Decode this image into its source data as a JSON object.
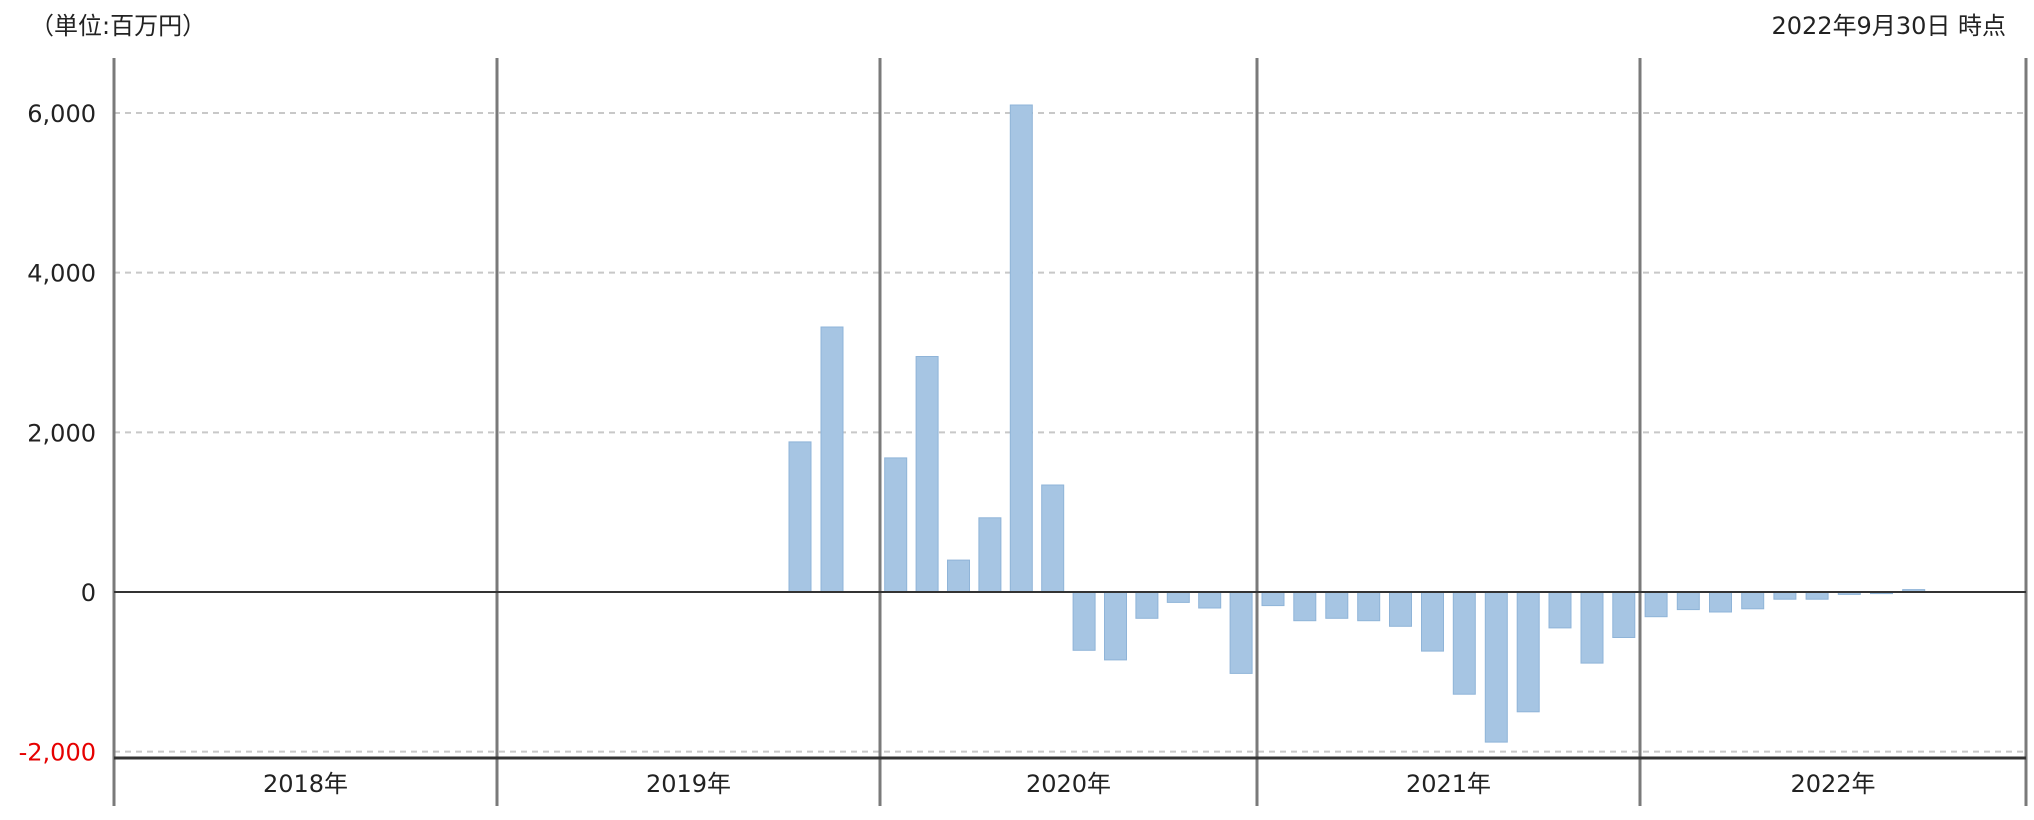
{
  "header": {
    "unit_label": "（単位:百万円）",
    "as_of_label": "2022年9月30日 時点"
  },
  "colors": {
    "bar": "#a6c5e3",
    "grid": "#c8c8c8",
    "axis": "#333333",
    "separator": "#7a7a7a",
    "negative_tick": "#e60000",
    "text": "#222222"
  },
  "chart_data": {
    "type": "bar",
    "unit": "百万円",
    "ylim": [
      -2000,
      6300
    ],
    "yticks": [
      {
        "value": 6000,
        "label": "6,000"
      },
      {
        "value": 4000,
        "label": "4,000"
      },
      {
        "value": 2000,
        "label": "2,000"
      },
      {
        "value": 0,
        "label": "0"
      },
      {
        "value": -2000,
        "label": "-2,000"
      }
    ],
    "grid": true,
    "legend": "none",
    "categories": [
      "2018年",
      "2019年",
      "2020年",
      "2021年",
      "2022年"
    ],
    "series": [
      {
        "values": [
          {
            "year": "2019年",
            "slot": 10,
            "value": 1880
          },
          {
            "year": "2019年",
            "slot": 11,
            "value": 3320
          },
          {
            "year": "2020年",
            "slot": 1,
            "value": 1680
          },
          {
            "year": "2020年",
            "slot": 2,
            "value": 2950
          },
          {
            "year": "2020年",
            "slot": 3,
            "value": 400
          },
          {
            "year": "2020年",
            "slot": 4,
            "value": 930
          },
          {
            "year": "2020年",
            "slot": 5,
            "value": 6100
          },
          {
            "year": "2020年",
            "slot": 6,
            "value": 1340
          },
          {
            "year": "2020年",
            "slot": 7,
            "value": -730
          },
          {
            "year": "2020年",
            "slot": 8,
            "value": -850
          },
          {
            "year": "2020年",
            "slot": 9,
            "value": -330
          },
          {
            "year": "2020年",
            "slot": 10,
            "value": -130
          },
          {
            "year": "2020年",
            "slot": 11,
            "value": -200
          },
          {
            "year": "2020年",
            "slot": 12,
            "value": -1020
          },
          {
            "year": "2021年",
            "slot": 1,
            "value": -170
          },
          {
            "year": "2021年",
            "slot": 2,
            "value": -360
          },
          {
            "year": "2021年",
            "slot": 3,
            "value": -330
          },
          {
            "year": "2021年",
            "slot": 4,
            "value": -360
          },
          {
            "year": "2021年",
            "slot": 5,
            "value": -430
          },
          {
            "year": "2021年",
            "slot": 6,
            "value": -740
          },
          {
            "year": "2021年",
            "slot": 7,
            "value": -1280
          },
          {
            "year": "2021年",
            "slot": 8,
            "value": -1880
          },
          {
            "year": "2021年",
            "slot": 9,
            "value": -1500
          },
          {
            "year": "2021年",
            "slot": 10,
            "value": -450
          },
          {
            "year": "2021年",
            "slot": 11,
            "value": -890
          },
          {
            "year": "2021年",
            "slot": 12,
            "value": -570
          },
          {
            "year": "2022年",
            "slot": 1,
            "value": -310
          },
          {
            "year": "2022年",
            "slot": 2,
            "value": -220
          },
          {
            "year": "2022年",
            "slot": 3,
            "value": -250
          },
          {
            "year": "2022年",
            "slot": 4,
            "value": -210
          },
          {
            "year": "2022年",
            "slot": 5,
            "value": -90
          },
          {
            "year": "2022年",
            "slot": 6,
            "value": -90
          },
          {
            "year": "2022年",
            "slot": 7,
            "value": -30
          },
          {
            "year": "2022年",
            "slot": 8,
            "value": -20
          },
          {
            "year": "2022年",
            "slot": 9,
            "value": 30
          }
        ]
      }
    ]
  }
}
